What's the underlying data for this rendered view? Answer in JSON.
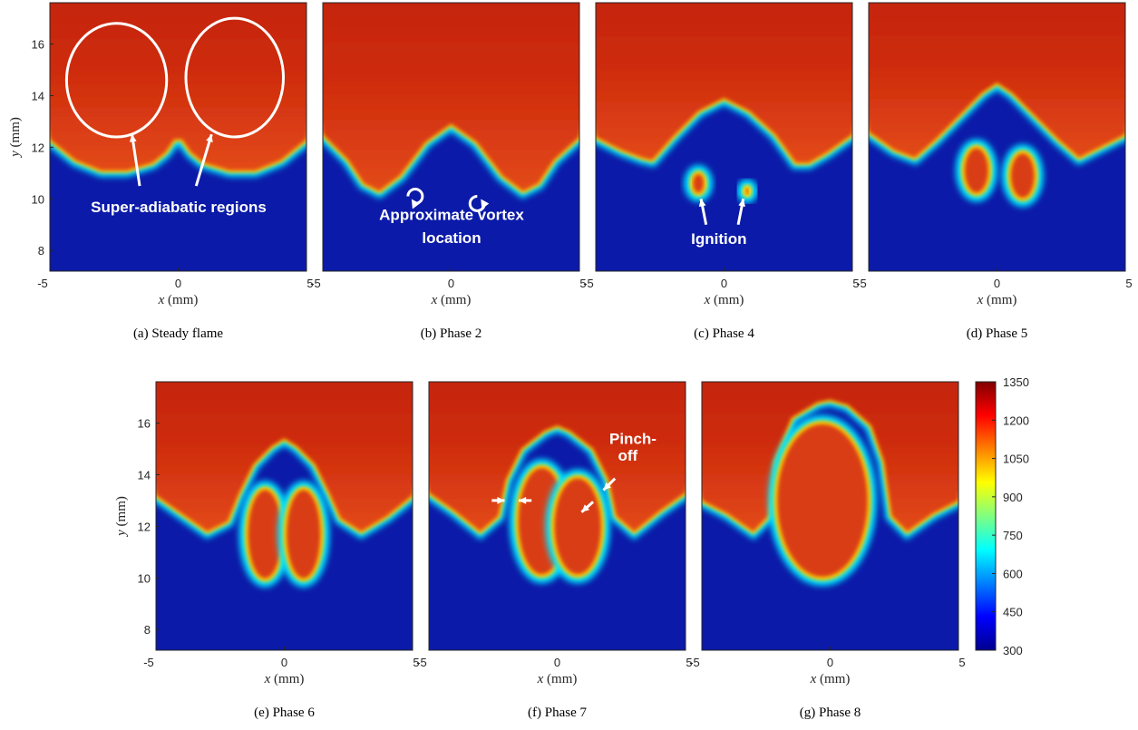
{
  "chart_data": [
    {
      "type": "heatmap",
      "id": "a",
      "caption": "(a)  Steady flame",
      "x_ticks": [
        "-5",
        "0",
        "5"
      ],
      "y_ticks": [
        "8",
        "10",
        "12",
        "14",
        "16"
      ],
      "xlabel_var": "x",
      "xlabel_unit": "(mm)",
      "ylabel_var": "y",
      "ylabel_unit": "(mm)",
      "xlim": [
        -5,
        5
      ],
      "ylim": [
        7.2,
        17.6
      ],
      "flame_front": [
        [
          -5,
          12.3
        ],
        [
          -4,
          11.5
        ],
        [
          -3,
          11.1
        ],
        [
          -2,
          11.1
        ],
        [
          -1,
          11.4
        ],
        [
          -0.5,
          11.8
        ],
        [
          -0.15,
          12.3
        ],
        [
          0.15,
          12.3
        ],
        [
          0.5,
          11.8
        ],
        [
          1,
          11.4
        ],
        [
          2,
          11.1
        ],
        [
          3,
          11.1
        ],
        [
          4,
          11.5
        ],
        [
          5,
          12.3
        ]
      ],
      "annotations": [
        "Super-adiabatic regions"
      ]
    },
    {
      "type": "heatmap",
      "id": "b",
      "caption": "(b)  Phase 2",
      "x_ticks": [
        "-5",
        "0",
        "5"
      ],
      "y_ticks": [],
      "xlabel_var": "x",
      "xlabel_unit": "(mm)",
      "xlim": [
        -5,
        5
      ],
      "ylim": [
        7.2,
        17.6
      ],
      "flame_front": [
        [
          -5,
          12.5
        ],
        [
          -4,
          11.5
        ],
        [
          -3.4,
          10.6
        ],
        [
          -2.8,
          10.3
        ],
        [
          -2,
          10.9
        ],
        [
          -1,
          12.2
        ],
        [
          0,
          12.9
        ],
        [
          1,
          12.2
        ],
        [
          2,
          10.9
        ],
        [
          2.8,
          10.3
        ],
        [
          3.4,
          10.6
        ],
        [
          4,
          11.5
        ],
        [
          5,
          12.4
        ]
      ],
      "annotations": [
        "Approximate vortex",
        "location"
      ]
    },
    {
      "type": "heatmap",
      "id": "c",
      "caption": "(c)  Phase 4",
      "x_ticks": [
        "-5",
        "0",
        "5"
      ],
      "y_ticks": [],
      "xlabel_var": "x",
      "xlabel_unit": "(mm)",
      "xlim": [
        -5,
        5
      ],
      "ylim": [
        7.2,
        17.6
      ],
      "flame_front": [
        [
          -5,
          12.4
        ],
        [
          -4,
          11.9
        ],
        [
          -3.2,
          11.6
        ],
        [
          -2.8,
          11.5
        ],
        [
          -2,
          12.4
        ],
        [
          -1,
          13.4
        ],
        [
          0,
          13.9
        ],
        [
          1,
          13.4
        ],
        [
          2,
          12.5
        ],
        [
          2.8,
          11.4
        ],
        [
          3.3,
          11.4
        ],
        [
          4,
          11.8
        ],
        [
          5,
          12.5
        ]
      ],
      "pockets": [
        {
          "cx": -1.0,
          "cy": 10.6,
          "rx": 0.35,
          "ry": 0.5
        },
        {
          "cx": 0.9,
          "cy": 10.3,
          "rx": 0.2,
          "ry": 0.25
        }
      ],
      "annotations": [
        "Ignition"
      ]
    },
    {
      "type": "heatmap",
      "id": "d",
      "caption": "(d)  Phase 5",
      "x_ticks": [
        "-5",
        "0",
        "5"
      ],
      "y_ticks": [],
      "xlabel_var": "x",
      "xlabel_unit": "(mm)",
      "xlim": [
        -5,
        5
      ],
      "ylim": [
        7.2,
        17.6
      ],
      "flame_front": [
        [
          -5,
          12.6
        ],
        [
          -4,
          11.9
        ],
        [
          -3.2,
          11.6
        ],
        [
          -2.4,
          12.3
        ],
        [
          -1.5,
          13.2
        ],
        [
          -0.6,
          14.1
        ],
        [
          0,
          14.5
        ],
        [
          0.6,
          14.1
        ],
        [
          1.5,
          13.2
        ],
        [
          2.4,
          12.3
        ],
        [
          3.2,
          11.6
        ],
        [
          4,
          12.0
        ],
        [
          5,
          12.5
        ]
      ],
      "pockets": [
        {
          "cx": -0.8,
          "cy": 11.1,
          "rx": 0.6,
          "ry": 1.0
        },
        {
          "cx": 1.0,
          "cy": 10.9,
          "rx": 0.6,
          "ry": 1.0
        }
      ],
      "annotations": []
    },
    {
      "type": "heatmap",
      "id": "e",
      "caption": "(e)  Phase 6",
      "x_ticks": [
        "-5",
        "0",
        "5"
      ],
      "y_ticks": [
        "8",
        "10",
        "12",
        "14",
        "16"
      ],
      "xlabel_var": "x",
      "xlabel_unit": "(mm)",
      "ylabel_var": "y",
      "ylabel_unit": "(mm)",
      "xlim": [
        -5,
        5
      ],
      "ylim": [
        7.2,
        17.6
      ],
      "flame_front": [
        [
          -5,
          13.2
        ],
        [
          -4,
          12.5
        ],
        [
          -3,
          11.8
        ],
        [
          -2.2,
          12.2
        ],
        [
          -1.8,
          13.2
        ],
        [
          -1.2,
          14.4
        ],
        [
          -0.5,
          15.1
        ],
        [
          0,
          15.4
        ],
        [
          0.5,
          15.1
        ],
        [
          1.2,
          14.4
        ],
        [
          1.8,
          13.2
        ],
        [
          2.2,
          12.3
        ],
        [
          3,
          11.8
        ],
        [
          4,
          12.4
        ],
        [
          5,
          13.2
        ]
      ],
      "pockets": [
        {
          "cx": -0.75,
          "cy": 11.7,
          "rx": 0.8,
          "ry": 1.85
        },
        {
          "cx": 0.75,
          "cy": 11.7,
          "rx": 0.8,
          "ry": 1.85
        }
      ],
      "annotations": []
    },
    {
      "type": "heatmap",
      "id": "f",
      "caption": "(f)  Phase 7",
      "x_ticks": [
        "-5",
        "0",
        "5"
      ],
      "y_ticks": [],
      "xlabel_var": "x",
      "xlabel_unit": "(mm)",
      "xlim": [
        -5,
        5
      ],
      "ylim": [
        7.2,
        17.6
      ],
      "flame_front": [
        [
          -5,
          13.3
        ],
        [
          -4,
          12.6
        ],
        [
          -3,
          11.8
        ],
        [
          -2.3,
          12.4
        ],
        [
          -2.0,
          13.8
        ],
        [
          -1.4,
          15.0
        ],
        [
          -0.5,
          15.7
        ],
        [
          0,
          15.9
        ],
        [
          0.5,
          15.7
        ],
        [
          1.4,
          15.0
        ],
        [
          2.0,
          13.8
        ],
        [
          2.3,
          12.4
        ],
        [
          3,
          11.8
        ],
        [
          4,
          12.6
        ],
        [
          5,
          13.3
        ]
      ],
      "pockets": [
        {
          "cx": -0.6,
          "cy": 12.2,
          "rx": 1.05,
          "ry": 2.2
        },
        {
          "cx": 0.8,
          "cy": 12.0,
          "rx": 1.05,
          "ry": 2.0
        }
      ],
      "annotations": [
        "Pinch-",
        "off"
      ]
    },
    {
      "type": "heatmap",
      "id": "g",
      "caption": "(g)  Phase 8",
      "x_ticks": [
        "-5",
        "0",
        "5"
      ],
      "y_ticks": [],
      "xlabel_var": "x",
      "xlabel_unit": "(mm)",
      "xlim": [
        -5,
        5
      ],
      "ylim": [
        7.2,
        17.6
      ],
      "flame_front": [
        [
          -5,
          13.0
        ],
        [
          -4,
          12.5
        ],
        [
          -3,
          11.8
        ],
        [
          -2.4,
          12.4
        ],
        [
          -2.2,
          14.5
        ],
        [
          -1.5,
          16.2
        ],
        [
          -0.5,
          16.8
        ],
        [
          0,
          16.9
        ],
        [
          0.7,
          16.7
        ],
        [
          1.6,
          15.9
        ],
        [
          2.1,
          14.5
        ],
        [
          2.4,
          12.4
        ],
        [
          3,
          11.8
        ],
        [
          4,
          12.5
        ],
        [
          5,
          13.0
        ]
      ],
      "pockets": [
        {
          "cx": -0.3,
          "cy": 13.0,
          "rx": 1.9,
          "ry": 3.1
        }
      ],
      "annotations": []
    }
  ],
  "colorbar": {
    "ticks": [
      "1350",
      "1200",
      "1050",
      "900",
      "750",
      "600",
      "450",
      "300"
    ],
    "range": [
      300,
      1350
    ],
    "colors": [
      "#00008f",
      "#0000ff",
      "#0080ff",
      "#00ffff",
      "#80ff80",
      "#ffff00",
      "#ff8000",
      "#ff0000",
      "#800000"
    ]
  },
  "colors": {
    "cold": "#0b1aa8",
    "hot": "#d93d14",
    "hot_top": "#c4240f",
    "front": "#00e6ff",
    "front_mid": "#ffd200",
    "annotation": "#ffffff"
  }
}
